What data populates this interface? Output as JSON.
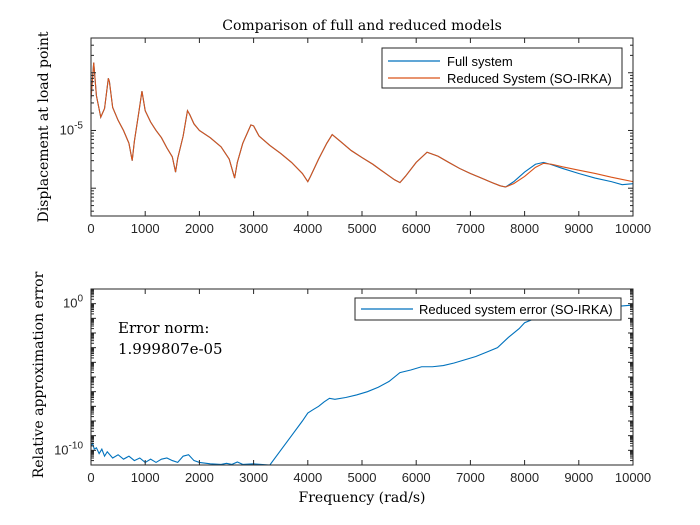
{
  "chart_data": [
    {
      "type": "line",
      "title": "Comparison of full and reduced models",
      "xlabel": "",
      "ylabel": "Displacement at load point",
      "yscale": "log",
      "xlim": [
        0,
        10000
      ],
      "ylim": [
        3.3e-07,
        0.0004
      ],
      "xticks": [
        "0",
        "1000",
        "2000",
        "3000",
        "4000",
        "5000",
        "6000",
        "7000",
        "8000",
        "9000",
        "10000"
      ],
      "yticks": [
        {
          "value": 1e-05,
          "label": "10",
          "exp": "-5"
        }
      ],
      "legend": "top-right",
      "grid": false,
      "series": [
        {
          "name": "Full system",
          "color": "#0072BD",
          "x": [
            0,
            50,
            100,
            180,
            250,
            320,
            340,
            400,
            500,
            600,
            700,
            760,
            800,
            880,
            940,
            1000,
            1100,
            1200,
            1300,
            1400,
            1500,
            1560,
            1600,
            1700,
            1780,
            1820,
            1900,
            2000,
            2200,
            2400,
            2550,
            2650,
            2700,
            2800,
            2950,
            3000,
            3100,
            3300,
            3500,
            3700,
            3900,
            4000,
            4050,
            4200,
            4350,
            4450,
            4600,
            4800,
            5000,
            5200,
            5400,
            5600,
            5700,
            5800,
            6000,
            6200,
            6400,
            6600,
            6800,
            7000,
            7200,
            7400,
            7550,
            7650,
            7800,
            8000,
            8200,
            8350,
            8500,
            8700,
            9000,
            9300,
            9600,
            9800,
            10000
          ],
          "y": [
            3.5e-05,
            0.00015,
            4e-05,
            1.7e-05,
            2.4e-05,
            8e-05,
            7e-05,
            2.5e-05,
            1.5e-05,
            1e-05,
            6e-06,
            3e-06,
            6.5e-06,
            2e-05,
            4.8e-05,
            2.2e-05,
            1.4e-05,
            1e-05,
            7.5e-06,
            5e-06,
            3.5e-06,
            1.9e-06,
            3.3e-06,
            8e-06,
            2.2e-05,
            1.9e-05,
            1.3e-05,
            1e-05,
            7.5e-06,
            5.2e-06,
            3.2e-06,
            1.5e-06,
            2.8e-06,
            6e-06,
            1.25e-05,
            1.2e-05,
            8e-06,
            5.5e-06,
            4e-06,
            2.8e-06,
            1.8e-06,
            1.3e-06,
            1.6e-06,
            3.2e-06,
            6e-06,
            8.5e-06,
            6.5e-06,
            4.5e-06,
            3.4e-06,
            2.6e-06,
            1.9e-06,
            1.4e-06,
            1.25e-06,
            1.6e-06,
            2.8e-06,
            4.2e-06,
            3.6e-06,
            2.8e-06,
            2.2e-06,
            1.8e-06,
            1.5e-06,
            1.25e-06,
            1.1e-06,
            1.05e-06,
            1.3e-06,
            1.9e-06,
            2.6e-06,
            2.8e-06,
            2.55e-06,
            2.2e-06,
            1.8e-06,
            1.5e-06,
            1.3e-06,
            1.15e-06,
            1.2e-06
          ]
        },
        {
          "name": "Reduced System (SO-IRKA)",
          "color": "#D95319",
          "x": [
            0,
            50,
            100,
            180,
            250,
            320,
            340,
            400,
            500,
            600,
            700,
            760,
            800,
            880,
            940,
            1000,
            1100,
            1200,
            1300,
            1400,
            1500,
            1560,
            1600,
            1700,
            1780,
            1820,
            1900,
            2000,
            2200,
            2400,
            2550,
            2650,
            2700,
            2800,
            2950,
            3000,
            3100,
            3300,
            3500,
            3700,
            3900,
            4000,
            4050,
            4200,
            4350,
            4450,
            4600,
            4800,
            5000,
            5200,
            5400,
            5600,
            5700,
            5800,
            6000,
            6200,
            6400,
            6600,
            6800,
            7000,
            7200,
            7400,
            7550,
            7650,
            7800,
            8000,
            8200,
            8350,
            8500,
            8700,
            9000,
            9300,
            9600,
            9800,
            10000
          ],
          "y": [
            3.5e-05,
            0.00015,
            4e-05,
            1.7e-05,
            2.4e-05,
            8e-05,
            7e-05,
            2.5e-05,
            1.5e-05,
            1e-05,
            6e-06,
            3e-06,
            6.5e-06,
            2e-05,
            4.8e-05,
            2.2e-05,
            1.4e-05,
            1e-05,
            7.5e-06,
            5e-06,
            3.5e-06,
            1.9e-06,
            3.3e-06,
            8e-06,
            2.2e-05,
            1.9e-05,
            1.3e-05,
            1e-05,
            7.5e-06,
            5.2e-06,
            3.2e-06,
            1.5e-06,
            2.8e-06,
            6e-06,
            1.25e-05,
            1.2e-05,
            8e-06,
            5.5e-06,
            4e-06,
            2.8e-06,
            1.8e-06,
            1.3e-06,
            1.6e-06,
            3.2e-06,
            6e-06,
            8.5e-06,
            6.5e-06,
            4.5e-06,
            3.4e-06,
            2.6e-06,
            1.9e-06,
            1.4e-06,
            1.25e-06,
            1.6e-06,
            2.8e-06,
            4.2e-06,
            3.6e-06,
            2.8e-06,
            2.2e-06,
            1.8e-06,
            1.5e-06,
            1.25e-06,
            1.1e-06,
            1.05e-06,
            1.2e-06,
            1.6e-06,
            2.3e-06,
            2.7e-06,
            2.6e-06,
            2.35e-06,
            2.05e-06,
            1.8e-06,
            1.55e-06,
            1.42e-06,
            1.3e-06
          ]
        }
      ]
    },
    {
      "type": "line",
      "title": "",
      "xlabel": "Frequency (rad/s)",
      "ylabel": "Relative approximation error",
      "yscale": "log",
      "xlim": [
        0,
        10000
      ],
      "ylim": [
        1e-11,
        10.0
      ],
      "xticks": [
        "0",
        "1000",
        "2000",
        "3000",
        "4000",
        "5000",
        "6000",
        "7000",
        "8000",
        "9000",
        "10000"
      ],
      "yticks": [
        {
          "value": 1e-10,
          "label": "10",
          "exp": "-10"
        },
        {
          "value": 1,
          "label": "10",
          "exp": "0"
        }
      ],
      "legend": "top-right",
      "grid": false,
      "annotation": [
        "Error norm:",
        "1.999807e-05"
      ],
      "series": [
        {
          "name": "Reduced system error (SO-IRKA)",
          "color": "#0072BD",
          "x": [
            0,
            30,
            60,
            100,
            150,
            200,
            250,
            300,
            400,
            500,
            600,
            700,
            800,
            900,
            1000,
            1100,
            1200,
            1300,
            1400,
            1500,
            1600,
            1700,
            1800,
            1900,
            2000,
            2200,
            2400,
            2500,
            2600,
            2700,
            2800,
            3000,
            3200,
            3300,
            3500,
            3700,
            3900,
            4000,
            4100,
            4200,
            4300,
            4400,
            4500,
            4700,
            4900,
            5100,
            5300,
            5500,
            5700,
            5900,
            6100,
            6300,
            6500,
            6700,
            6900,
            7100,
            7300,
            7500,
            7700,
            7900,
            8000,
            8200,
            8400,
            8600,
            8800,
            9000,
            9200,
            9400,
            9600,
            9800,
            10000
          ],
          "y": [
            2e-10,
            3e-10,
            1.2e-10,
            1.5e-10,
            6e-11,
            1.2e-10,
            4e-11,
            8e-11,
            3e-11,
            5e-11,
            2.5e-11,
            4e-11,
            2e-11,
            3e-11,
            1.5e-11,
            2.5e-11,
            1.5e-11,
            2.5e-11,
            3e-11,
            2e-11,
            1.5e-11,
            4e-11,
            5e-11,
            2e-11,
            1.5e-11,
            1.2e-11,
            1.1e-11,
            1.3e-11,
            1.1e-11,
            1.6e-11,
            1.1e-11,
            1.2e-11,
            1.05e-11,
            1e-11,
            1e-10,
            1e-09,
            1e-08,
            3.5e-08,
            6e-08,
            1e-07,
            2e-07,
            3.5e-07,
            3e-07,
            4e-07,
            6e-07,
            1e-06,
            2e-06,
            5e-06,
            2e-05,
            3e-05,
            5e-05,
            5e-05,
            6e-05,
            9e-05,
            0.00015,
            0.00025,
            0.0005,
            0.001,
            0.005,
            0.02,
            0.05,
            0.1,
            0.15,
            0.2,
            0.3,
            0.4,
            0.4,
            0.5,
            0.6,
            0.7,
            0.8
          ]
        }
      ]
    }
  ]
}
